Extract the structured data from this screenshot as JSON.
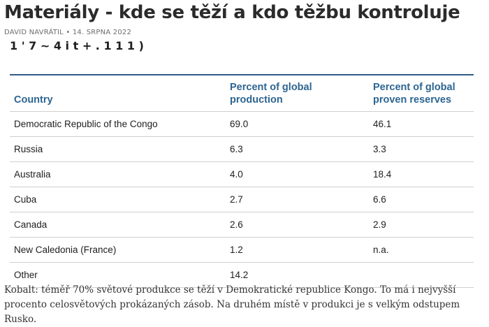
{
  "article": {
    "title": "Materiály - kde se těží a kdo těžbu kontroluje",
    "author": "DAVID NAVRÁTIL",
    "separator": "•",
    "date": "14. SRPNA 2022"
  },
  "figure": {
    "cut_heading": "1 ' 7  ~ 4 i  t + . 1  1 1 )",
    "table": {
      "headers": [
        "Country",
        "Percent of global production",
        "Percent of global proven reserves"
      ],
      "rows": [
        [
          "Democratic Republic of the Congo",
          "69.0",
          "46.1"
        ],
        [
          "Russia",
          "6.3",
          "3.3"
        ],
        [
          "Australia",
          "4.0",
          "18.4"
        ],
        [
          "Cuba",
          "2.7",
          "6.6"
        ],
        [
          "Canada",
          "2.6",
          "2.9"
        ],
        [
          "New Caledonia (France)",
          "1.2",
          "n.a."
        ],
        [
          "Other",
          "14.2",
          ""
        ]
      ]
    }
  },
  "caption": "Kobalt: téměř 70% světové produkce se těží v Demokratické republice Kongo. To má i nejvyšší procento celosvětových prokázaných zásob. Na druhém místě v produkci je s velkým odstupem Rusko."
}
